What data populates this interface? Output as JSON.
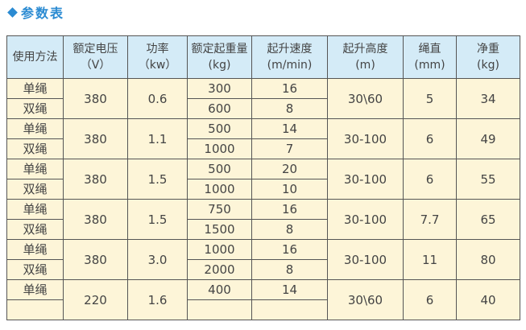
{
  "header": {
    "title": "参数表"
  },
  "table": {
    "columns": [
      [
        "使用方法"
      ],
      [
        "额定电压",
        "（V）"
      ],
      [
        "功率",
        "（kw）"
      ],
      [
        "额定起重量(kg)"
      ],
      [
        "起升速度",
        "(m/min)"
      ],
      [
        "起升高度",
        "(m)"
      ],
      [
        "绳直",
        "(mm)"
      ],
      [
        "净重",
        "(kg)"
      ]
    ],
    "groups": [
      {
        "voltage": "380",
        "power": "0.6",
        "height": "30\\60",
        "rope": "5",
        "weight": "34",
        "rows": [
          {
            "method": "单绳",
            "load": "300",
            "speed": "16"
          },
          {
            "method": "双绳",
            "load": "600",
            "speed": "8"
          }
        ]
      },
      {
        "voltage": "380",
        "power": "1.1",
        "height": "30-100",
        "rope": "6",
        "weight": "49",
        "rows": [
          {
            "method": "单绳",
            "load": "500",
            "speed": "14"
          },
          {
            "method": "双绳",
            "load": "1000",
            "speed": "7"
          }
        ]
      },
      {
        "voltage": "380",
        "power": "1.5",
        "height": "30-100",
        "rope": "6",
        "weight": "55",
        "rows": [
          {
            "method": "单绳",
            "load": "500",
            "speed": "20"
          },
          {
            "method": "双绳",
            "load": "1000",
            "speed": "10"
          }
        ]
      },
      {
        "voltage": "380",
        "power": "1.5",
        "height": "30-100",
        "rope": "7.7",
        "weight": "65",
        "rows": [
          {
            "method": "单绳",
            "load": "750",
            "speed": "16"
          },
          {
            "method": "双绳",
            "load": "1500",
            "speed": "8"
          }
        ]
      },
      {
        "voltage": "380",
        "power": "3.0",
        "height": "30-100",
        "rope": "11",
        "weight": "80",
        "rows": [
          {
            "method": "单绳",
            "load": "1000",
            "speed": "16"
          },
          {
            "method": "双绳",
            "load": "2000",
            "speed": "8"
          }
        ]
      },
      {
        "voltage": "220",
        "power": "1.6",
        "height": "30\\60",
        "rope": "6",
        "weight": "40",
        "rows": [
          {
            "method": "单绳",
            "load": "400",
            "speed": "14"
          }
        ]
      }
    ]
  }
}
